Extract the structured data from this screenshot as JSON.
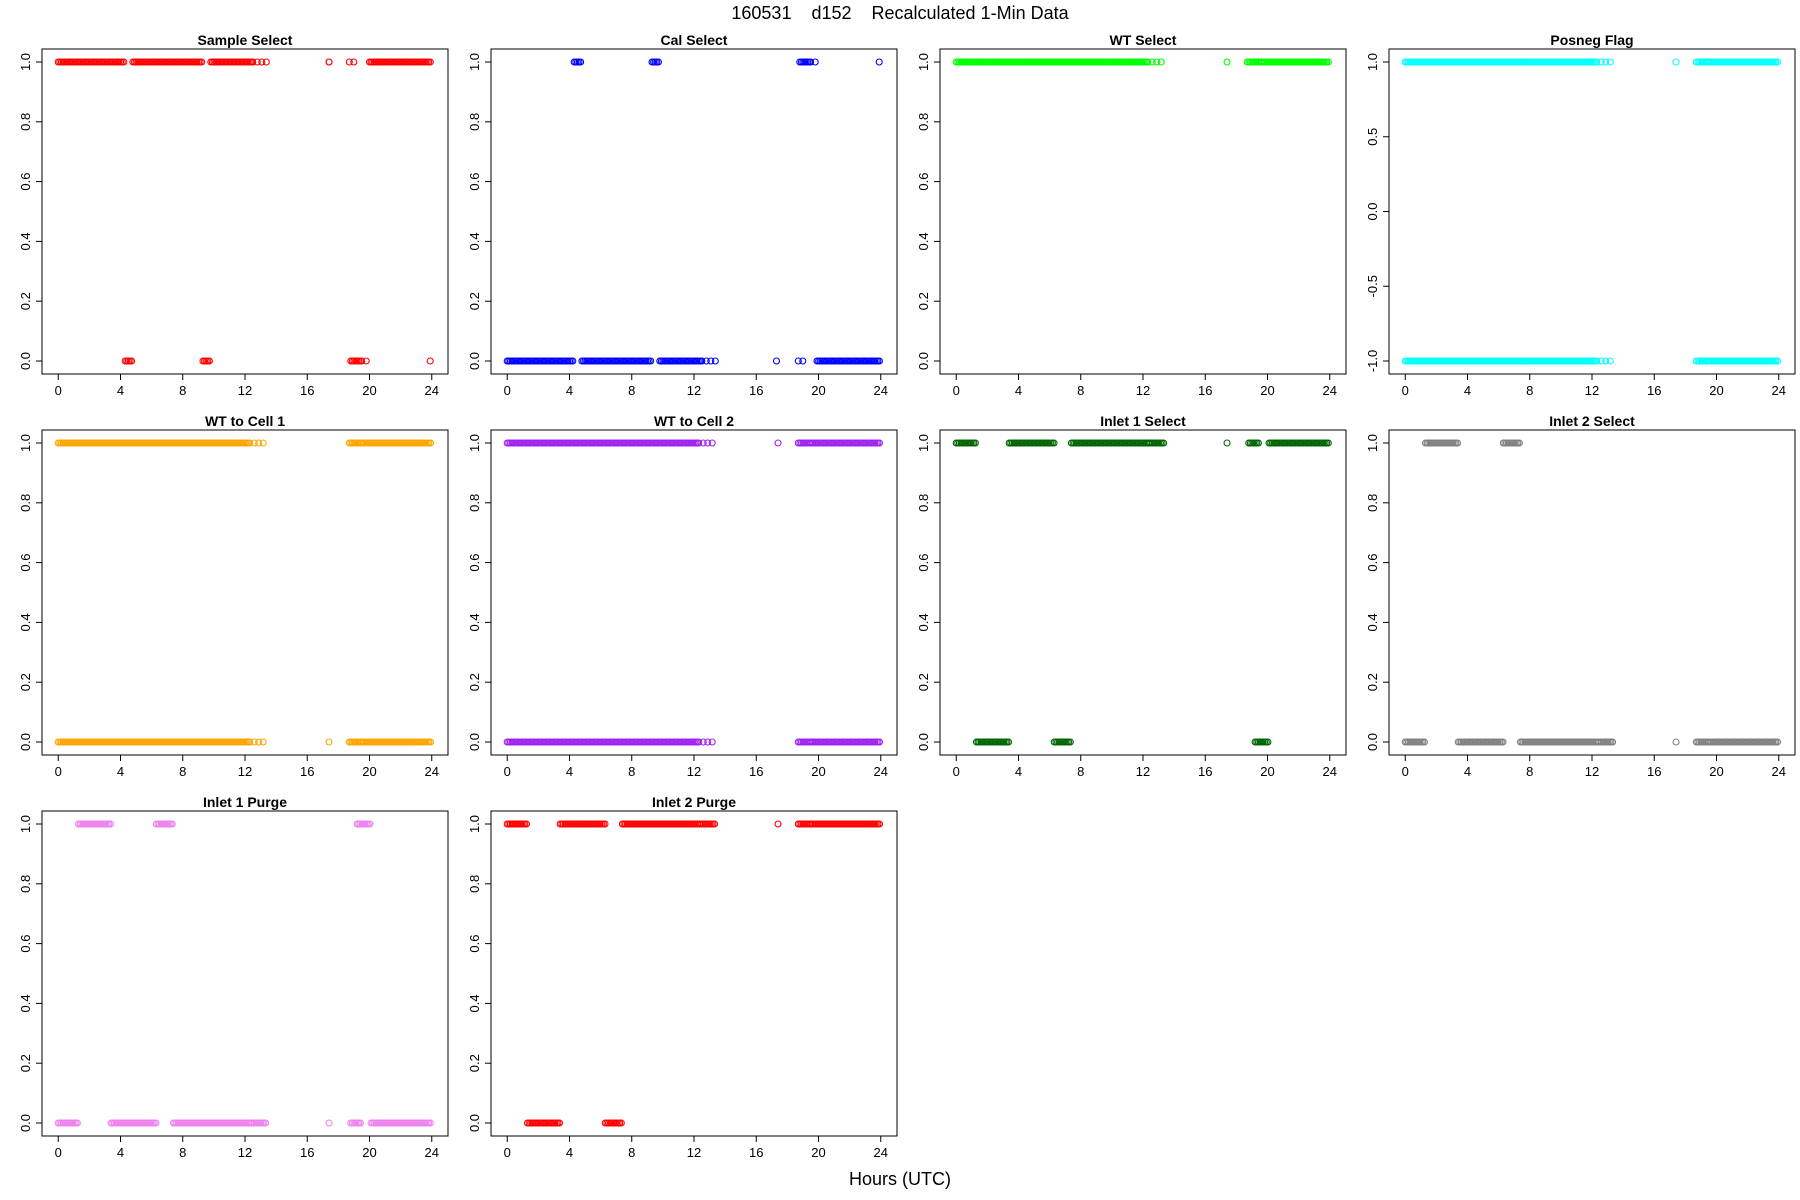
{
  "figure": {
    "title": "160531    d152    Recalculated 1-Min Data",
    "x_axis_title": "Hours (UTC)"
  },
  "chart_data": [
    {
      "type": "scatter",
      "title": "Sample Select",
      "color": "#ff0000",
      "xlim": [
        0,
        24
      ],
      "ylim": [
        0,
        1
      ],
      "x_ticks": [
        0,
        4,
        8,
        12,
        16,
        20,
        24
      ],
      "y_ticks": [
        "0.0",
        "0.2",
        "0.4",
        "0.6",
        "0.8",
        "1.0"
      ],
      "y_tick_values": [
        0,
        0.2,
        0.4,
        0.6,
        0.8,
        1.0
      ],
      "segments": [
        {
          "x": [
            0.0,
            4.3
          ],
          "y": 1
        },
        {
          "x": [
            4.3,
            4.8
          ],
          "y": 0
        },
        {
          "x": [
            4.8,
            9.3
          ],
          "y": 1
        },
        {
          "x": [
            9.3,
            9.8
          ],
          "y": 0
        },
        {
          "x": [
            9.8,
            12.5
          ],
          "y": 1
        },
        {
          "x": [
            12.5,
            13.4
          ],
          "y": 1,
          "sparse": true
        },
        {
          "x": [
            18.7,
            19.1
          ],
          "y": 1,
          "sparse": true
        },
        {
          "x": [
            18.8,
            19.5
          ],
          "y": 0
        },
        {
          "x": [
            19.5,
            20.0
          ],
          "y": 0,
          "sparse": true
        },
        {
          "x": [
            20.0,
            24.0
          ],
          "y": 1
        }
      ],
      "points": [
        {
          "x": 17.4,
          "y": 1
        },
        {
          "x": 17.4,
          "y": 1
        },
        {
          "x": 23.9,
          "y": 0
        }
      ]
    },
    {
      "type": "scatter",
      "title": "Cal Select",
      "color": "#0000ff",
      "xlim": [
        0,
        24
      ],
      "ylim": [
        0,
        1
      ],
      "x_ticks": [
        0,
        4,
        8,
        12,
        16,
        20,
        24
      ],
      "y_ticks": [
        "0.0",
        "0.2",
        "0.4",
        "0.6",
        "0.8",
        "1.0"
      ],
      "y_tick_values": [
        0,
        0.2,
        0.4,
        0.6,
        0.8,
        1.0
      ],
      "segments": [
        {
          "x": [
            0.0,
            4.3
          ],
          "y": 0
        },
        {
          "x": [
            4.3,
            4.8
          ],
          "y": 1
        },
        {
          "x": [
            4.8,
            9.3
          ],
          "y": 0
        },
        {
          "x": [
            9.3,
            9.8
          ],
          "y": 1
        },
        {
          "x": [
            9.8,
            12.5
          ],
          "y": 0
        },
        {
          "x": [
            12.5,
            13.4
          ],
          "y": 0,
          "sparse": true
        },
        {
          "x": [
            18.7,
            19.1
          ],
          "y": 0,
          "sparse": true
        },
        {
          "x": [
            18.8,
            19.5
          ],
          "y": 1
        },
        {
          "x": [
            19.5,
            19.9
          ],
          "y": 1,
          "sparse": true
        },
        {
          "x": [
            19.9,
            24.0
          ],
          "y": 0
        }
      ],
      "points": [
        {
          "x": 17.3,
          "y": 0
        },
        {
          "x": 23.9,
          "y": 1
        }
      ]
    },
    {
      "type": "scatter",
      "title": "WT Select",
      "color": "#00ff00",
      "xlim": [
        0,
        24
      ],
      "ylim": [
        0,
        1
      ],
      "x_ticks": [
        0,
        4,
        8,
        12,
        16,
        20,
        24
      ],
      "y_ticks": [
        "0.0",
        "0.2",
        "0.4",
        "0.6",
        "0.8",
        "1.0"
      ],
      "y_tick_values": [
        0,
        0.2,
        0.4,
        0.6,
        0.8,
        1.0
      ],
      "segments": [
        {
          "x": [
            0.0,
            12.3
          ],
          "y": 1
        },
        {
          "x": [
            12.3,
            13.4
          ],
          "y": 1,
          "sparse": true
        },
        {
          "x": [
            18.7,
            19.7
          ],
          "y": 1
        },
        {
          "x": [
            19.7,
            24.0
          ],
          "y": 1
        }
      ],
      "points": [
        {
          "x": 17.4,
          "y": 1
        }
      ]
    },
    {
      "type": "scatter",
      "title": "Posneg Flag",
      "color": "#00ffff",
      "xlim": [
        0,
        24
      ],
      "ylim": [
        -1,
        1
      ],
      "x_ticks": [
        0,
        4,
        8,
        12,
        16,
        20,
        24
      ],
      "y_ticks": [
        "-1.0",
        "-0.5",
        "0.0",
        "0.5",
        "1.0"
      ],
      "y_tick_values": [
        -1,
        -0.5,
        0,
        0.5,
        1
      ],
      "segments": [
        {
          "x": [
            0.0,
            12.3
          ],
          "y": 1
        },
        {
          "x": [
            12.3,
            13.4
          ],
          "y": 1,
          "sparse": true
        },
        {
          "x": [
            18.7,
            19.5
          ],
          "y": 1
        },
        {
          "x": [
            19.5,
            24.0
          ],
          "y": 1
        },
        {
          "x": [
            0.0,
            12.3
          ],
          "y": -1
        },
        {
          "x": [
            12.3,
            13.4
          ],
          "y": -1,
          "sparse": true
        },
        {
          "x": [
            18.7,
            19.5
          ],
          "y": -1
        },
        {
          "x": [
            19.5,
            24.0
          ],
          "y": -1
        }
      ],
      "points": [
        {
          "x": 17.4,
          "y": 1
        }
      ]
    },
    {
      "type": "scatter",
      "title": "WT to Cell 1",
      "color": "#ffa500",
      "xlim": [
        0,
        24
      ],
      "ylim": [
        0,
        1
      ],
      "x_ticks": [
        0,
        4,
        8,
        12,
        16,
        20,
        24
      ],
      "y_ticks": [
        "0.0",
        "0.2",
        "0.4",
        "0.6",
        "0.8",
        "1.0"
      ],
      "y_tick_values": [
        0,
        0.2,
        0.4,
        0.6,
        0.8,
        1.0
      ],
      "segments": [
        {
          "x": [
            0.0,
            12.3
          ],
          "y": 1
        },
        {
          "x": [
            12.3,
            13.4
          ],
          "y": 1,
          "sparse": true
        },
        {
          "x": [
            18.7,
            19.5
          ],
          "y": 1
        },
        {
          "x": [
            19.5,
            24.0
          ],
          "y": 1
        },
        {
          "x": [
            0.0,
            12.3
          ],
          "y": 0
        },
        {
          "x": [
            12.3,
            13.4
          ],
          "y": 0,
          "sparse": true
        },
        {
          "x": [
            18.7,
            19.5
          ],
          "y": 0
        },
        {
          "x": [
            19.5,
            24.0
          ],
          "y": 0
        }
      ],
      "points": [
        {
          "x": 17.4,
          "y": 0
        }
      ]
    },
    {
      "type": "scatter",
      "title": "WT to Cell 2",
      "color": "#a020f0",
      "xlim": [
        0,
        24
      ],
      "ylim": [
        0,
        1
      ],
      "x_ticks": [
        0,
        4,
        8,
        12,
        16,
        20,
        24
      ],
      "y_ticks": [
        "0.0",
        "0.2",
        "0.4",
        "0.6",
        "0.8",
        "1.0"
      ],
      "y_tick_values": [
        0,
        0.2,
        0.4,
        0.6,
        0.8,
        1.0
      ],
      "segments": [
        {
          "x": [
            0.0,
            12.3
          ],
          "y": 1
        },
        {
          "x": [
            12.3,
            13.4
          ],
          "y": 1,
          "sparse": true
        },
        {
          "x": [
            18.7,
            19.5
          ],
          "y": 1
        },
        {
          "x": [
            19.5,
            24.0
          ],
          "y": 1
        },
        {
          "x": [
            0.0,
            12.3
          ],
          "y": 0
        },
        {
          "x": [
            12.3,
            13.4
          ],
          "y": 0,
          "sparse": true
        },
        {
          "x": [
            18.7,
            19.5
          ],
          "y": 0
        },
        {
          "x": [
            19.5,
            24.0
          ],
          "y": 0
        }
      ],
      "points": [
        {
          "x": 17.4,
          "y": 1
        }
      ]
    },
    {
      "type": "scatter",
      "title": "Inlet 1 Select",
      "color": "#006400",
      "xlim": [
        0,
        24
      ],
      "ylim": [
        0,
        1
      ],
      "x_ticks": [
        0,
        4,
        8,
        12,
        16,
        20,
        24
      ],
      "y_ticks": [
        "0.0",
        "0.2",
        "0.4",
        "0.6",
        "0.8",
        "1.0"
      ],
      "y_tick_values": [
        0,
        0.2,
        0.4,
        0.6,
        0.8,
        1.0
      ],
      "segments": [
        {
          "x": [
            0.0,
            1.3
          ],
          "y": 1
        },
        {
          "x": [
            1.3,
            3.4
          ],
          "y": 0
        },
        {
          "x": [
            3.4,
            6.3
          ],
          "y": 1
        },
        {
          "x": [
            6.3,
            7.4
          ],
          "y": 0
        },
        {
          "x": [
            7.4,
            12.4
          ],
          "y": 1
        },
        {
          "x": [
            12.4,
            13.4
          ],
          "y": 1
        },
        {
          "x": [
            18.8,
            19.5
          ],
          "y": 1
        },
        {
          "x": [
            19.2,
            20.1
          ],
          "y": 0
        },
        {
          "x": [
            20.1,
            24.0
          ],
          "y": 1
        }
      ],
      "points": [
        {
          "x": 17.4,
          "y": 1
        }
      ]
    },
    {
      "type": "scatter",
      "title": "Inlet 2 Select",
      "color": "#808080",
      "xlim": [
        0,
        24
      ],
      "ylim": [
        0,
        1
      ],
      "x_ticks": [
        0,
        4,
        8,
        12,
        16,
        20,
        24
      ],
      "y_ticks": [
        "0.0",
        "0.2",
        "0.4",
        "0.6",
        "0.8",
        "1.0"
      ],
      "y_tick_values": [
        0,
        0.2,
        0.4,
        0.6,
        0.8,
        1.0
      ],
      "segments": [
        {
          "x": [
            0.0,
            1.3
          ],
          "y": 0
        },
        {
          "x": [
            1.3,
            3.4
          ],
          "y": 1
        },
        {
          "x": [
            3.4,
            6.3
          ],
          "y": 0
        },
        {
          "x": [
            6.3,
            7.4
          ],
          "y": 1
        },
        {
          "x": [
            7.4,
            12.4
          ],
          "y": 0
        },
        {
          "x": [
            12.4,
            13.4
          ],
          "y": 0
        },
        {
          "x": [
            18.7,
            19.5
          ],
          "y": 0
        },
        {
          "x": [
            19.5,
            24.0
          ],
          "y": 0
        }
      ],
      "points": [
        {
          "x": 17.4,
          "y": 0
        }
      ]
    },
    {
      "type": "scatter",
      "title": "Inlet 1 Purge",
      "color": "#ee82ee",
      "xlim": [
        0,
        24
      ],
      "ylim": [
        0,
        1
      ],
      "x_ticks": [
        0,
        4,
        8,
        12,
        16,
        20,
        24
      ],
      "y_ticks": [
        "0.0",
        "0.2",
        "0.4",
        "0.6",
        "0.8",
        "1.0"
      ],
      "y_tick_values": [
        0,
        0.2,
        0.4,
        0.6,
        0.8,
        1.0
      ],
      "segments": [
        {
          "x": [
            0.0,
            1.3
          ],
          "y": 0
        },
        {
          "x": [
            1.3,
            3.4
          ],
          "y": 1
        },
        {
          "x": [
            3.4,
            6.3
          ],
          "y": 0
        },
        {
          "x": [
            6.3,
            7.4
          ],
          "y": 1
        },
        {
          "x": [
            7.4,
            12.4
          ],
          "y": 0
        },
        {
          "x": [
            12.4,
            13.4
          ],
          "y": 0
        },
        {
          "x": [
            18.8,
            19.5
          ],
          "y": 0
        },
        {
          "x": [
            19.2,
            20.1
          ],
          "y": 1
        },
        {
          "x": [
            20.1,
            24.0
          ],
          "y": 0
        }
      ],
      "points": [
        {
          "x": 17.4,
          "y": 0
        }
      ]
    },
    {
      "type": "scatter",
      "title": "Inlet 2 Purge",
      "color": "#ff0000",
      "xlim": [
        0,
        24
      ],
      "ylim": [
        0,
        1
      ],
      "x_ticks": [
        0,
        4,
        8,
        12,
        16,
        20,
        24
      ],
      "y_ticks": [
        "0.0",
        "0.2",
        "0.4",
        "0.6",
        "0.8",
        "1.0"
      ],
      "y_tick_values": [
        0,
        0.2,
        0.4,
        0.6,
        0.8,
        1.0
      ],
      "segments": [
        {
          "x": [
            0.0,
            1.3
          ],
          "y": 1
        },
        {
          "x": [
            1.3,
            3.4
          ],
          "y": 0
        },
        {
          "x": [
            3.4,
            6.3
          ],
          "y": 1
        },
        {
          "x": [
            6.3,
            7.4
          ],
          "y": 0
        },
        {
          "x": [
            7.4,
            12.4
          ],
          "y": 1
        },
        {
          "x": [
            12.4,
            13.4
          ],
          "y": 1
        },
        {
          "x": [
            18.7,
            19.5
          ],
          "y": 1
        },
        {
          "x": [
            19.5,
            24.0
          ],
          "y": 1
        }
      ],
      "points": [
        {
          "x": 17.4,
          "y": 1
        }
      ]
    }
  ]
}
